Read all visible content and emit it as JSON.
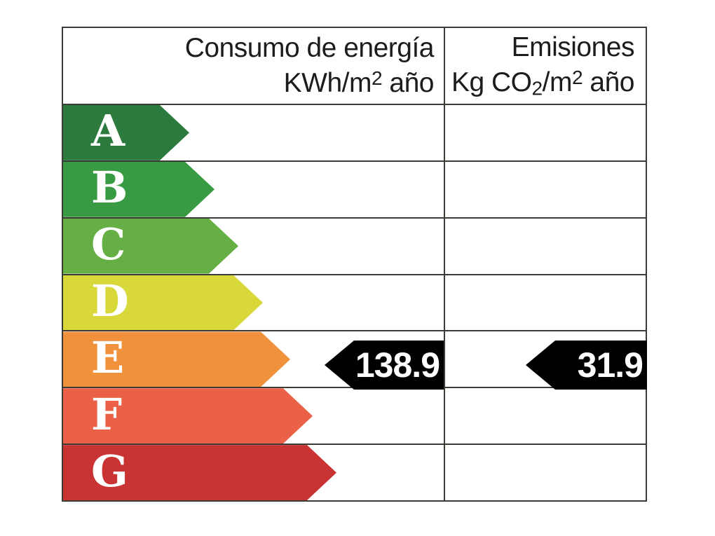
{
  "page": {
    "background": "#ffffff"
  },
  "table": {
    "border_color": "#3b3b35",
    "line_color": "#3b3b35"
  },
  "header": {
    "consumo": {
      "line1": "Consumo de energía",
      "unit_pre": "KWh/m",
      "unit_sup": "2",
      "unit_post": " año"
    },
    "emisiones": {
      "line1": "Emisiones",
      "unit_p1": "Kg CO",
      "unit_sub": "2",
      "unit_p2": "/m",
      "unit_sup": "2",
      "unit_p3": " año"
    }
  },
  "scale": {
    "rows": [
      {
        "grade": "A",
        "color": "#2d7a3e"
      },
      {
        "grade": "B",
        "color": "#389b44"
      },
      {
        "grade": "C",
        "color": "#65af44"
      },
      {
        "grade": "D",
        "color": "#d8d83a"
      },
      {
        "grade": "E",
        "color": "#f0913c"
      },
      {
        "grade": "F",
        "color": "#ea6148"
      },
      {
        "grade": "G",
        "color": "#ca3333"
      }
    ]
  },
  "indicators": {
    "consumo": {
      "value": "138.9",
      "row": "E",
      "color": "#000000",
      "text_color": "#ffffff"
    },
    "emisiones": {
      "value": "31.9",
      "row": "E",
      "color": "#000000",
      "text_color": "#ffffff"
    }
  },
  "chart_data": {
    "type": "bar",
    "title": "",
    "categories": [
      "A",
      "B",
      "C",
      "D",
      "E",
      "F",
      "G"
    ],
    "bar_colors": [
      "#2d7a3e",
      "#389b44",
      "#65af44",
      "#d8d83a",
      "#f0913c",
      "#ea6148",
      "#ca3333"
    ],
    "columns": [
      "Consumo de energía KWh/m2 año",
      "Emisiones Kg CO2/m2 año"
    ],
    "series": [
      {
        "name": "Consumo de energía KWh/m2 año",
        "rated_grade": "E",
        "value": 138.9
      },
      {
        "name": "Emisiones Kg CO2/m2 año",
        "rated_grade": "E",
        "value": 31.9
      }
    ],
    "layout": "energy-rating scale, arrows A-G increasing length, black left-pointing value arrows on grade E row"
  }
}
